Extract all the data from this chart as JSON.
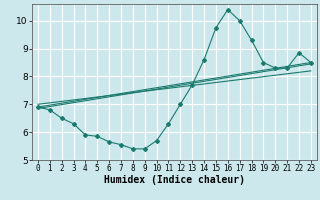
{
  "xlabel": "Humidex (Indice chaleur)",
  "bg_color": "#cde8ec",
  "grid_color": "#ffffff",
  "line_color": "#1a7a6e",
  "xlim": [
    -0.5,
    23.5
  ],
  "ylim": [
    5,
    10.6
  ],
  "yticks": [
    5,
    6,
    7,
    8,
    9,
    10
  ],
  "xticks": [
    0,
    1,
    2,
    3,
    4,
    5,
    6,
    7,
    8,
    9,
    10,
    11,
    12,
    13,
    14,
    15,
    16,
    17,
    18,
    19,
    20,
    21,
    22,
    23
  ],
  "series1_x": [
    0,
    1,
    2,
    3,
    4,
    5,
    6,
    7,
    8,
    9,
    10,
    11,
    12,
    13,
    14,
    15,
    16,
    17,
    18,
    19,
    20,
    21,
    22,
    23
  ],
  "series1_y": [
    6.9,
    6.8,
    6.5,
    6.3,
    5.9,
    5.85,
    5.65,
    5.55,
    5.4,
    5.4,
    5.7,
    6.3,
    7.0,
    7.7,
    8.6,
    9.75,
    10.4,
    10.0,
    9.3,
    8.5,
    8.3,
    8.3,
    8.85,
    8.5
  ],
  "line2_x": [
    0,
    23
  ],
  "line2_y": [
    6.9,
    8.5
  ],
  "line3_x": [
    0,
    23
  ],
  "line3_y": [
    7.0,
    8.2
  ],
  "line4_x": [
    0,
    23
  ],
  "line4_y": [
    6.85,
    8.45
  ]
}
